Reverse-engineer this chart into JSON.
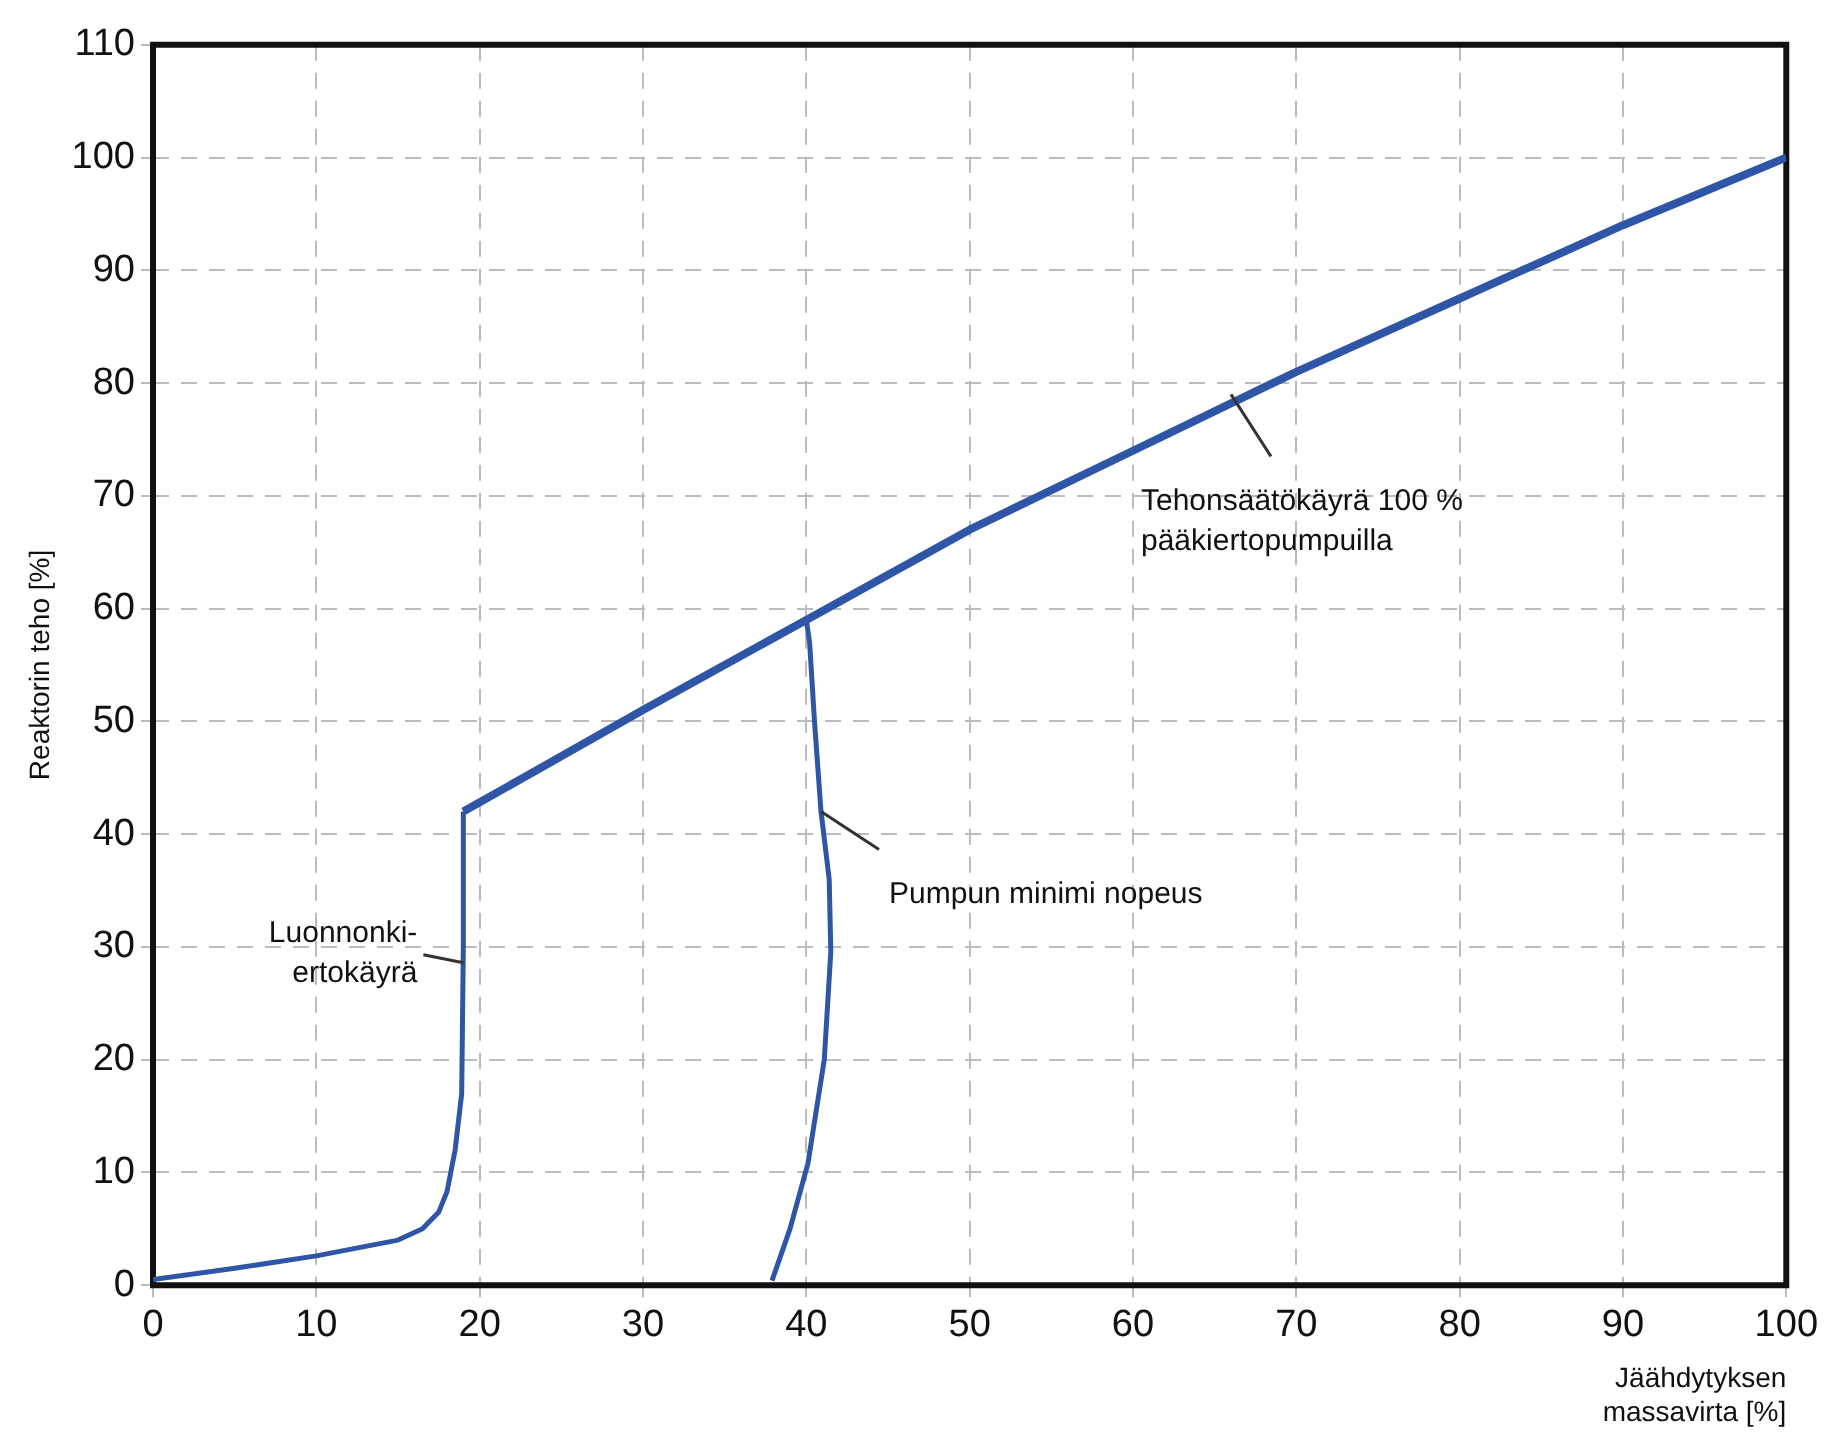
{
  "chart_data": {
    "type": "line",
    "xlabel": "Jäähdytyksen\nmassavirta [%]",
    "ylabel": "Reaktorin teho [%]",
    "xlim": [
      0,
      100
    ],
    "ylim": [
      0,
      110
    ],
    "xticks": [
      0,
      10,
      20,
      30,
      40,
      50,
      60,
      70,
      80,
      90,
      100
    ],
    "yticks": [
      0,
      10,
      20,
      30,
      40,
      50,
      60,
      70,
      80,
      90,
      100,
      110
    ],
    "grid": true,
    "legend": false,
    "line_style": "solid",
    "series": [
      {
        "color": "#2f56a6",
        "x": [
          19,
          30,
          40,
          50,
          60,
          70,
          80,
          90,
          100
        ],
        "values": [
          42,
          51,
          59,
          67,
          74,
          81,
          87.5,
          94,
          100
        ]
      },
      {
        "color": "#2f56a6",
        "x": [
          0,
          5,
          10,
          15,
          16.5,
          17.5,
          18,
          18.5,
          18.9,
          19,
          19
        ],
        "values": [
          0.5,
          1.5,
          2.6,
          4,
          5,
          6.5,
          8.3,
          12,
          17,
          30,
          42
        ]
      },
      {
        "color": "#2f56a6",
        "x": [
          37.9,
          39,
          40.1,
          41.1,
          41.5,
          41.4,
          40.9,
          40.5,
          40.2,
          40
        ],
        "values": [
          0.4,
          5,
          10.8,
          20,
          29.6,
          36,
          42,
          50,
          57,
          59
        ]
      }
    ],
    "annotations": [
      {
        "text": "Tehonsäätökäyrä 100 %\npääkiertopumpuilla",
        "x": 66,
        "y": 79
      },
      {
        "text": "Pumpun minimi nopeus",
        "x": 40.9,
        "y": 42
      },
      {
        "text": "Luonnonki-\nertokäyrä",
        "x": 19,
        "y": 28.6
      }
    ]
  }
}
